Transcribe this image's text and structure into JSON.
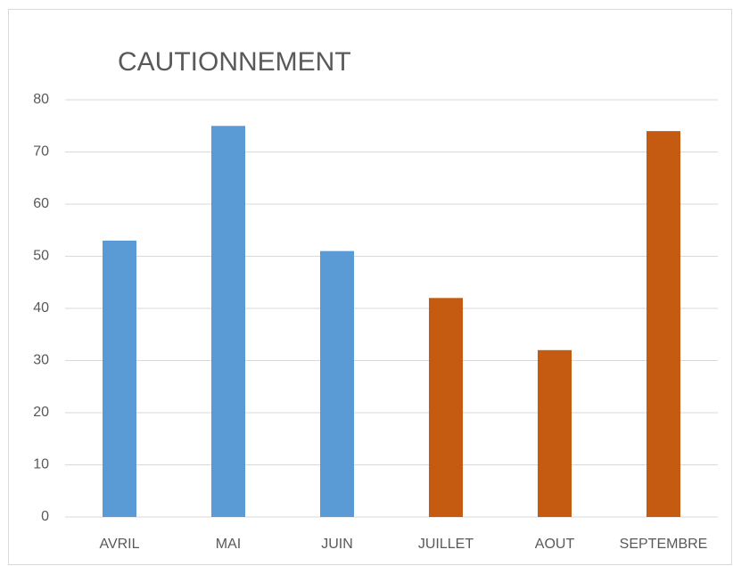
{
  "chart_data": {
    "type": "bar",
    "title": "CAUTIONNEMENT",
    "categories": [
      "AVRIL",
      "MAI",
      "JUIN",
      "JUILLET",
      "AOUT",
      "SEPTEMBRE"
    ],
    "values": [
      53,
      75,
      51,
      42,
      32,
      74
    ],
    "colors": [
      "#5b9bd5",
      "#5b9bd5",
      "#5b9bd5",
      "#c55a11",
      "#c55a11",
      "#c55a11"
    ],
    "ylim": [
      0,
      80
    ],
    "yticks": [
      0,
      10,
      20,
      30,
      40,
      50,
      60,
      70,
      80
    ],
    "grid": true
  }
}
